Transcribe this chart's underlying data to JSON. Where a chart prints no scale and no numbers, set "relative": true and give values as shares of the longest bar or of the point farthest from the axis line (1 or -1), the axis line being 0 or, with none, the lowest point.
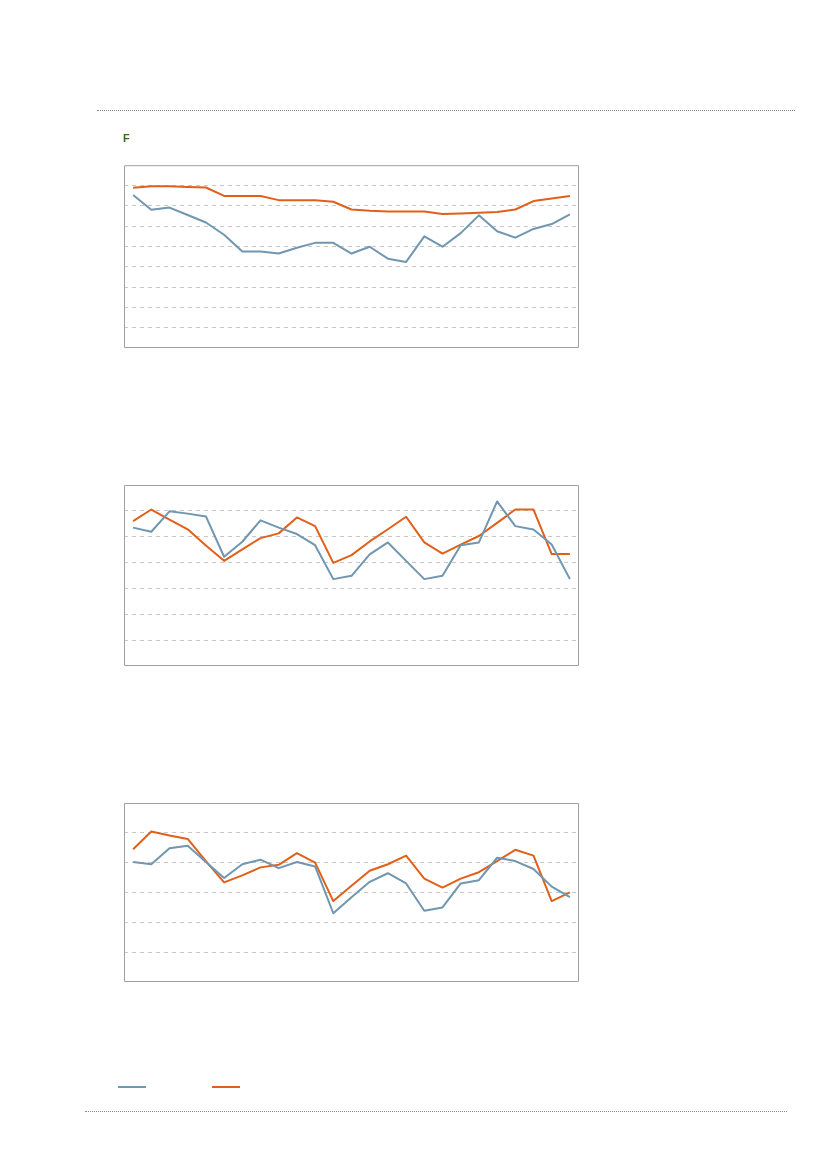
{
  "chart_data": [
    {
      "type": "line",
      "title": "F",
      "relative": true,
      "grid": "y",
      "legend": false,
      "categories": [
        null,
        null,
        null,
        null,
        null,
        null,
        null,
        null,
        null,
        null,
        null,
        null,
        null,
        null,
        null,
        null,
        null,
        null,
        null,
        null,
        null,
        null,
        null,
        null,
        null
      ],
      "series": [
        {
          "color": "#7096b0",
          "values": [
            0.946,
            0.854,
            0.868,
            0.822,
            0.776,
            0.7,
            0.596,
            0.596,
            0.584,
            0.62,
            0.65,
            0.65,
            0.584,
            0.626,
            0.552,
            0.532,
            0.69,
            0.626,
            0.71,
            0.82,
            0.722,
            0.682,
            0.736,
            0.766,
            0.826
          ]
        },
        {
          "color": "#e0601a",
          "values": [
            0.99,
            1,
            1,
            0.996,
            0.992,
            0.94,
            0.94,
            0.94,
            0.914,
            0.914,
            0.914,
            0.904,
            0.856,
            0.848,
            0.844,
            0.844,
            0.844,
            0.828,
            0.832,
            0.836,
            0.84,
            0.856,
            0.908,
            0.924,
            0.94
          ]
        }
      ]
    },
    {
      "type": "line",
      "relative": true,
      "grid": "y",
      "legend": false,
      "categories": [
        null,
        null,
        null,
        null,
        null,
        null,
        null,
        null,
        null,
        null,
        null,
        null,
        null,
        null,
        null,
        null,
        null,
        null,
        null,
        null,
        null,
        null,
        null,
        null,
        null
      ],
      "series": [
        {
          "color": "#7096b0",
          "values": [
            0.841,
            0.816,
            0.94,
            0.926,
            0.909,
            0.664,
            0.755,
            0.885,
            0.841,
            0.802,
            0.734,
            0.528,
            0.548,
            0.678,
            0.751,
            0.639,
            0.528,
            0.548,
            0.734,
            0.751,
            1,
            0.85,
            0.829,
            0.738,
            0.528
          ]
        },
        {
          "color": "#e0601a",
          "values": [
            0.88,
            0.951,
            0.889,
            0.831,
            0.732,
            0.639,
            0.709,
            0.777,
            0.806,
            0.903,
            0.85,
            0.627,
            0.674,
            0.757,
            0.831,
            0.907,
            0.751,
            0.683,
            0.738,
            0.79,
            0.87,
            0.951,
            0.951,
            0.68,
            0.68
          ]
        }
      ]
    },
    {
      "type": "line",
      "relative": true,
      "grid": "y",
      "legend": false,
      "categories": [
        null,
        null,
        null,
        null,
        null,
        null,
        null,
        null,
        null,
        null,
        null,
        null,
        null,
        null,
        null,
        null,
        null,
        null,
        null,
        null,
        null,
        null,
        null,
        null,
        null
      ],
      "series": [
        {
          "color": "#7096b0",
          "values": [
            0.798,
            0.783,
            0.889,
            0.906,
            0.798,
            0.691,
            0.783,
            0.813,
            0.757,
            0.798,
            0.768,
            0.457,
            0.564,
            0.666,
            0.723,
            0.655,
            0.474,
            0.496,
            0.655,
            0.677,
            0.826,
            0.804,
            0.751,
            0.634,
            0.564
          ]
        },
        {
          "color": "#e0601a",
          "values": [
            0.883,
            1,
            0.974,
            0.951,
            0.804,
            0.662,
            0.709,
            0.762,
            0.779,
            0.857,
            0.794,
            0.538,
            0.64,
            0.74,
            0.783,
            0.84,
            0.687,
            0.628,
            0.687,
            0.73,
            0.804,
            0.879,
            0.84,
            0.538,
            0.596
          ]
        }
      ]
    }
  ]
}
